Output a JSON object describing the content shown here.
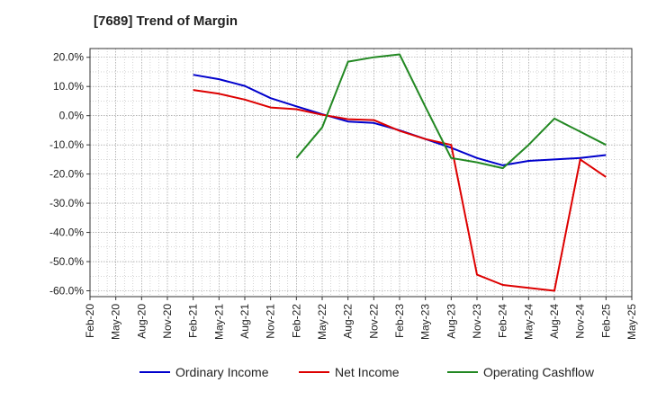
{
  "chart_data": {
    "type": "line",
    "title": "[7689]  Trend of Margin",
    "xlabel": "",
    "ylabel": "",
    "ylim": [
      -62,
      23
    ],
    "y_ticks": [
      20,
      10,
      0,
      -10,
      -20,
      -30,
      -40,
      -50,
      -60
    ],
    "y_tick_labels": [
      "20.0%",
      "10.0%",
      "0.0%",
      "-10.0%",
      "-20.0%",
      "-30.0%",
      "-40.0%",
      "-50.0%",
      "-60.0%"
    ],
    "x_tick_labels": [
      "Feb-20",
      "May-20",
      "Aug-20",
      "Nov-20",
      "Feb-21",
      "May-21",
      "Aug-21",
      "Nov-21",
      "Feb-22",
      "May-22",
      "Aug-22",
      "Nov-22",
      "Feb-23",
      "May-23",
      "Aug-23",
      "Nov-23",
      "Feb-24",
      "May-24",
      "Aug-24",
      "Nov-24",
      "Feb-25",
      "May-25"
    ],
    "grid": true,
    "legend": "bottom",
    "series": [
      {
        "name": "Ordinary Income",
        "color": "#0000cc",
        "x": [
          "Feb-21",
          "May-21",
          "Aug-21",
          "Nov-21",
          "Feb-22",
          "May-22",
          "Aug-22",
          "Nov-22",
          "Feb-23",
          "May-23",
          "Aug-23",
          "Nov-23",
          "Feb-24",
          "May-24",
          "Aug-24",
          "Nov-24",
          "Feb-25"
        ],
        "values": [
          14.0,
          12.5,
          10.2,
          6.0,
          3.2,
          0.5,
          -2.0,
          -2.5,
          -5.0,
          -8.0,
          -11.0,
          -14.5,
          -17.0,
          -15.5,
          -15.0,
          -14.5,
          -13.5
        ]
      },
      {
        "name": "Net Income",
        "color": "#dd0000",
        "x": [
          "Feb-21",
          "May-21",
          "Aug-21",
          "Nov-21",
          "Feb-22",
          "May-22",
          "Aug-22",
          "Nov-22",
          "Feb-23",
          "May-23",
          "Aug-23",
          "Nov-23",
          "Feb-24",
          "May-24",
          "Aug-24",
          "Nov-24",
          "Feb-25"
        ],
        "values": [
          8.8,
          7.5,
          5.5,
          2.8,
          2.2,
          0.3,
          -1.2,
          -1.5,
          -5.2,
          -8.0,
          -10.0,
          -54.5,
          -58.0,
          -59.0,
          -60.0,
          -15.0,
          -21.0
        ]
      },
      {
        "name": "Operating Cashflow",
        "color": "#228822",
        "x": [
          "Feb-22",
          "May-22",
          "Aug-22",
          "Nov-22",
          "Feb-23",
          "May-23",
          "Aug-23",
          "Nov-23",
          "Feb-24",
          "May-24",
          "Aug-24",
          "Nov-24",
          "Feb-25"
        ],
        "values": [
          -14.5,
          -4.0,
          18.5,
          20.0,
          21.0,
          3.0,
          -14.5,
          -16.0,
          -18.0,
          -10.0,
          -1.0,
          -5.5,
          -10.0
        ]
      }
    ]
  }
}
